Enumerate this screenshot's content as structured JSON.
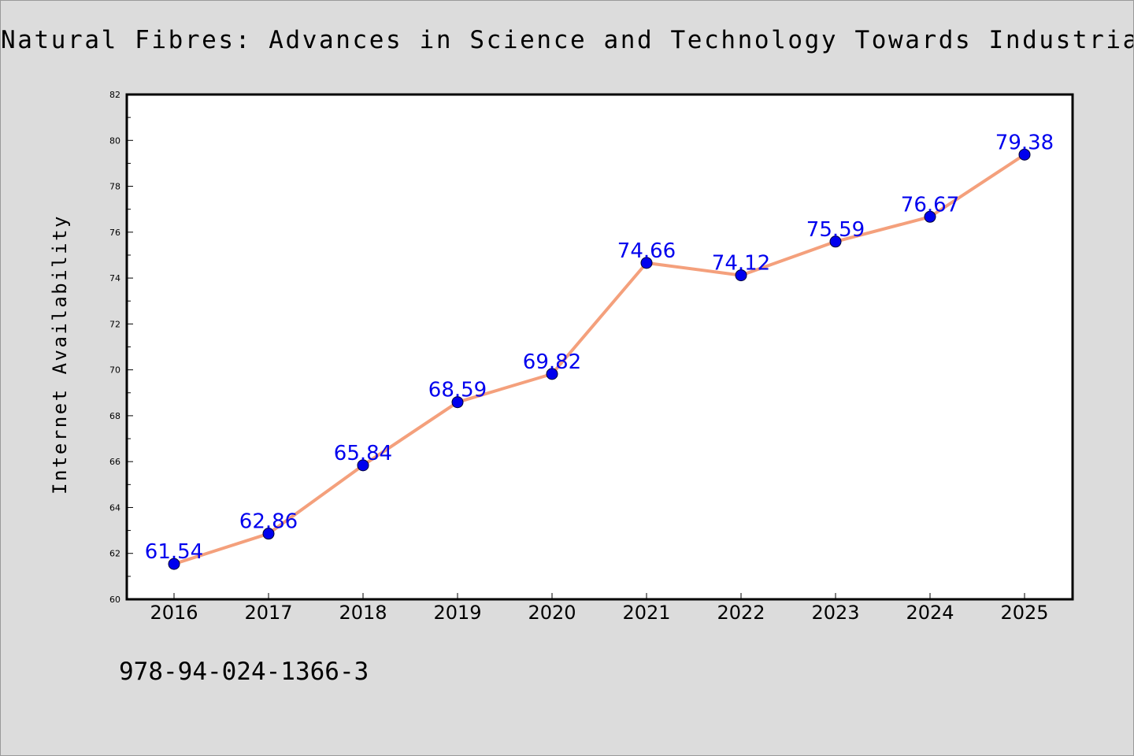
{
  "title": "Natural Fibres: Advances in Science and Technology Towards Industrial Applications",
  "isbn": "978-94-024-1366-3",
  "chart_data": {
    "type": "line",
    "title": "Natural Fibres: Advances in Science and Technology Towards Industrial Applications",
    "xlabel": "",
    "ylabel": "Internet Availability",
    "categories": [
      "2016",
      "2017",
      "2018",
      "2019",
      "2020",
      "2021",
      "2022",
      "2023",
      "2024",
      "2025"
    ],
    "series": [
      {
        "values": [
          61.54,
          62.86,
          65.84,
          68.59,
          69.82,
          74.66,
          74.12,
          75.59,
          76.67,
          79.38
        ]
      }
    ],
    "ylim": [
      60,
      82
    ],
    "yticks": [
      60,
      62,
      64,
      66,
      68,
      70,
      72,
      74,
      76,
      78,
      80,
      82
    ],
    "data_labels": [
      "61.54",
      "62.86",
      "65.84",
      "68.59",
      "69.82",
      "74.66",
      "74.12",
      "75.59",
      "76.67",
      "79.38"
    ],
    "grid": false,
    "legend": "none",
    "colors": {
      "line": "#f4a07c",
      "marker": "#0000ee",
      "data_label": "#0000ee",
      "plot_background": "#ffffff",
      "page_background": "#dcdcdc"
    }
  }
}
